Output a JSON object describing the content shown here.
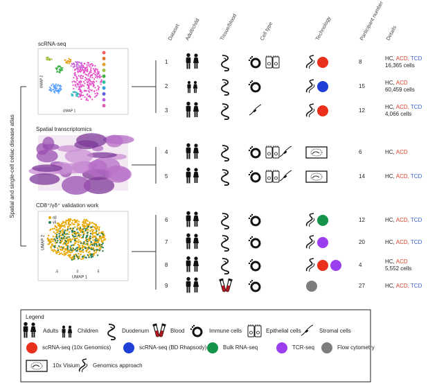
{
  "left_label": "Spatial and single-cell celiac disease atlas",
  "sections": [
    "scRNA-seq",
    "Spatial transcriptomics",
    "CD8⁺/γδ⁺ validation work"
  ],
  "umap": {
    "x_label": "UMAP 1",
    "y_label": "UMAP 2",
    "groups": [
      "αβ",
      "γδ"
    ],
    "xticks": [
      "-5",
      "0",
      "5"
    ]
  },
  "columns": [
    "Dataset",
    "Adult/child",
    "Tissue/blood",
    "Cell type",
    "Technology",
    "Participant number",
    "Details"
  ],
  "detail_colors": [
    "#222222",
    "#e0402a",
    "#3a5fcd"
  ],
  "tech_colors": {
    "10x": "#e8301c",
    "bd": "#1f3fd6",
    "bulk": "#15934a",
    "tcr": "#9b3ef0",
    "flow": "#7d7d7d"
  },
  "rows": [
    {
      "dataset": 1,
      "people": "adults",
      "tissue": "duodenum",
      "cell_types": [
        "immune",
        "epithelial"
      ],
      "technology": [
        "genomics",
        "10x"
      ],
      "participants": 8,
      "details": [
        "HC,",
        "ACD,",
        "TCD"
      ],
      "cell_count": "16,365 cells"
    },
    {
      "dataset": 2,
      "people": "children",
      "tissue": "duodenum",
      "cell_types": [
        "immune"
      ],
      "technology": [
        "genomics",
        "bd"
      ],
      "participants": 15,
      "details": [
        "HC,",
        "ACD"
      ],
      "cell_count": "60,459 cells"
    },
    {
      "dataset": 3,
      "people": "adults",
      "tissue": "duodenum",
      "cell_types": [
        "stromal"
      ],
      "technology": [
        "genomics",
        "10x"
      ],
      "participants": 12,
      "details": [
        "HC,",
        "ACD,",
        "TCD"
      ],
      "cell_count": "4,066 cells"
    },
    {
      "dataset": 4,
      "people": "adults",
      "tissue": "duodenum",
      "cell_types": [
        "immune",
        "epithelial",
        "stromal"
      ],
      "technology": [
        "visium"
      ],
      "participants": 6,
      "details": [
        "HC,",
        "ACD"
      ]
    },
    {
      "dataset": 5,
      "people": "adults",
      "tissue": "duodenum",
      "cell_types": [
        "immune",
        "epithelial",
        "stromal"
      ],
      "technology": [
        "visium"
      ],
      "participants": 14,
      "details": [
        "HC,",
        "ACD,",
        "TCD"
      ]
    },
    {
      "dataset": 6,
      "people": "adults",
      "tissue": "duodenum",
      "cell_types": [
        "immune"
      ],
      "technology": [
        "genomics",
        "bulk"
      ],
      "participants": 12,
      "details": [
        "HC,",
        "ACD,",
        "TCD"
      ]
    },
    {
      "dataset": 7,
      "people": "adults",
      "tissue": "duodenum",
      "cell_types": [
        "immune"
      ],
      "technology": [
        "genomics",
        "tcr"
      ],
      "participants": 20,
      "details": [
        "HC,",
        "ACD,",
        "TCD"
      ]
    },
    {
      "dataset": 8,
      "people": "adults",
      "tissue": "duodenum",
      "cell_types": [
        "immune"
      ],
      "technology": [
        "genomics",
        "10x",
        "tcr"
      ],
      "participants": 4,
      "details": [
        "HC,",
        "ACD"
      ],
      "cell_count": "5,552 cells"
    },
    {
      "dataset": 9,
      "people": "adults",
      "tissue": "blood",
      "cell_types": [
        "immune"
      ],
      "technology": [
        "flow"
      ],
      "participants": 27,
      "details": [
        "HC,",
        "ACD,",
        "TCD"
      ]
    }
  ],
  "legend": {
    "title": "Legend",
    "rows": [
      [
        {
          "icon": "adults",
          "label": "Adults"
        },
        {
          "icon": "children",
          "label": "Children"
        },
        {
          "icon": "duodenum",
          "label": "Duodenum"
        },
        {
          "icon": "blood",
          "label": "Blood"
        },
        {
          "icon": "immune",
          "label": "Immune cells"
        },
        {
          "icon": "epithelial",
          "label": "Epithelial cells"
        },
        {
          "icon": "stromal",
          "label": "Stromal cells"
        }
      ],
      [
        {
          "icon": "10x",
          "label": "scRNA-seq (10x Genomics)"
        },
        {
          "icon": "bd",
          "label": "scRNA-seq (BD Rhapsody)"
        },
        {
          "icon": "bulk",
          "label": "Bulk RNA-seq"
        },
        {
          "icon": "tcr",
          "label": "TCR-seq"
        },
        {
          "icon": "flow",
          "label": "Flow cytometry"
        }
      ],
      [
        {
          "icon": "visium",
          "label": "10x Visium"
        },
        {
          "icon": "genomics",
          "label": "Genomics approach"
        }
      ]
    ]
  }
}
